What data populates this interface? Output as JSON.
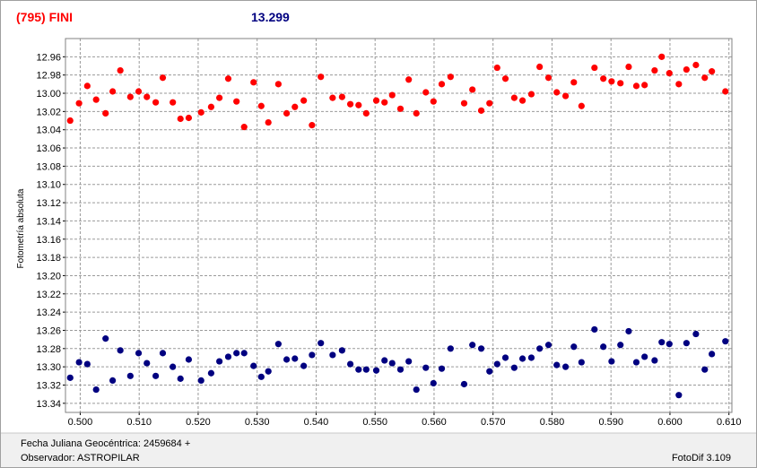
{
  "chart_data": {
    "type": "scatter",
    "title": "(795) FINI",
    "subtitle": "13.299",
    "ylabel": "Fotometría absoluta",
    "grid": true,
    "xlim": [
      0.4975,
      0.6105
    ],
    "ylim": [
      13.35,
      12.94
    ],
    "xticks": [
      {
        "value": 0.5,
        "label": "0.500"
      },
      {
        "value": 0.51,
        "label": "0.510"
      },
      {
        "value": 0.52,
        "label": "0.520"
      },
      {
        "value": 0.53,
        "label": "0.530"
      },
      {
        "value": 0.54,
        "label": "0.540"
      },
      {
        "value": 0.55,
        "label": "0.550"
      },
      {
        "value": 0.56,
        "label": "0.560"
      },
      {
        "value": 0.57,
        "label": "0.570"
      },
      {
        "value": 0.58,
        "label": "0.580"
      },
      {
        "value": 0.59,
        "label": "0.590"
      },
      {
        "value": 0.6,
        "label": "0.600"
      },
      {
        "value": 0.61,
        "label": "0.610"
      }
    ],
    "yticks": [
      12.96,
      12.98,
      {
        "value": 13,
        "label": "13.00"
      },
      13.02,
      13.04,
      13.06,
      13.08,
      {
        "value": 13.1,
        "label": "13.10"
      },
      13.12,
      13.14,
      13.16,
      13.18,
      {
        "value": 13.2,
        "label": "13.20"
      },
      13.22,
      13.24,
      13.26,
      13.28,
      {
        "value": 13.3,
        "label": "13.30"
      },
      13.32,
      13.34
    ],
    "x": [
      0.4983,
      0.4998,
      0.5012,
      0.5027,
      0.5043,
      0.5055,
      0.5068,
      0.5085,
      0.5099,
      0.5113,
      0.5128,
      0.514,
      0.5157,
      0.517,
      0.5184,
      0.5205,
      0.5222,
      0.5236,
      0.5251,
      0.5265,
      0.5278,
      0.5294,
      0.5307,
      0.5319,
      0.5336,
      0.535,
      0.5364,
      0.5379,
      0.5393,
      0.5408,
      0.5428,
      0.5444,
      0.5458,
      0.5472,
      0.5485,
      0.5502,
      0.5516,
      0.5529,
      0.5543,
      0.5557,
      0.557,
      0.5586,
      0.5599,
      0.5613,
      0.5628,
      0.5651,
      0.5665,
      0.568,
      0.5694,
      0.5707,
      0.5721,
      0.5736,
      0.575,
      0.5765,
      0.5779,
      0.5794,
      0.5808,
      0.5823,
      0.5837,
      0.585,
      0.5872,
      0.5887,
      0.5901,
      0.5916,
      0.593,
      0.5943,
      0.5957,
      0.5974,
      0.5986,
      0.5999,
      0.6015,
      0.6028,
      0.6044,
      0.6059,
      0.6071,
      0.6094
    ],
    "series": [
      {
        "color": "#ff0000",
        "values": [
          13.03,
          13.011,
          12.992,
          13.007,
          13.022,
          12.998,
          12.975,
          13.004,
          12.998,
          13.004,
          13.01,
          12.983,
          13.01,
          13.028,
          13.027,
          13.021,
          13.015,
          13.005,
          12.984,
          13.009,
          13.037,
          12.988,
          13.014,
          13.032,
          12.99,
          13.022,
          13.015,
          13.008,
          13.035,
          12.982,
          13.005,
          13.004,
          13.012,
          13.013,
          13.022,
          13.008,
          13.01,
          13.002,
          13.017,
          12.985,
          13.022,
          12.999,
          13.009,
          12.99,
          12.982,
          13.011,
          12.996,
          13.019,
          13.011,
          12.972,
          12.984,
          13.005,
          13.008,
          13.001,
          12.971,
          12.983,
          12.999,
          13.003,
          12.988,
          13.014,
          12.972,
          12.984,
          12.987,
          12.989,
          12.971,
          12.992,
          12.991,
          12.975,
          12.96,
          12.978,
          12.99,
          12.974,
          12.969,
          12.983,
          12.976,
          12.998
        ]
      },
      {
        "color": "#000080",
        "values": [
          13.312,
          13.295,
          13.297,
          13.325,
          13.269,
          13.315,
          13.282,
          13.31,
          13.285,
          13.296,
          13.31,
          13.285,
          13.3,
          13.313,
          13.292,
          13.315,
          13.307,
          13.294,
          13.289,
          13.285,
          13.285,
          13.299,
          13.311,
          13.305,
          13.275,
          13.292,
          13.291,
          13.299,
          13.287,
          13.274,
          13.287,
          13.282,
          13.297,
          13.303,
          13.303,
          13.304,
          13.293,
          13.296,
          13.303,
          13.294,
          13.325,
          13.301,
          13.318,
          13.302,
          13.28,
          13.319,
          13.276,
          13.28,
          13.305,
          13.297,
          13.29,
          13.301,
          13.291,
          13.29,
          13.28,
          13.276,
          13.298,
          13.3,
          13.278,
          13.295,
          13.259,
          13.278,
          13.294,
          13.276,
          13.261,
          13.295,
          13.289,
          13.293,
          13.273,
          13.275,
          13.331,
          13.274,
          13.264,
          13.303,
          13.286,
          13.272
        ]
      }
    ]
  },
  "footer": {
    "date": "Fecha Juliana Geocéntrica: 2459684 +",
    "observer": "Observador: ASTROPILAR",
    "software": "FotoDif 3.109"
  }
}
